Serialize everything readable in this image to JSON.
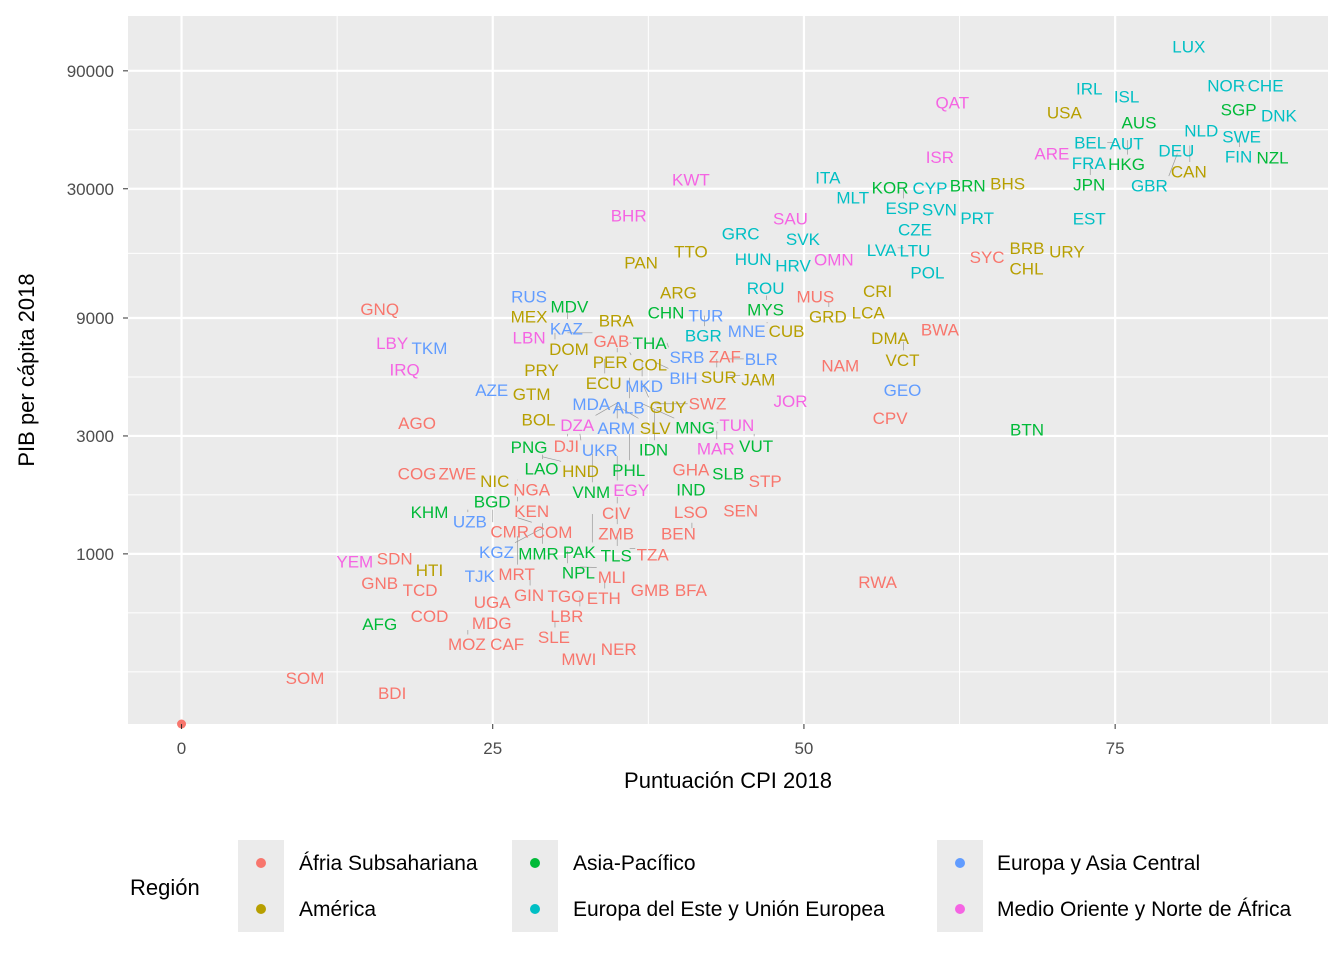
{
  "chart_data": {
    "type": "scatter",
    "title": "",
    "xlabel": "Puntuación CPI 2018",
    "ylabel": "PIB per cápita 2018",
    "x_scale": "linear",
    "y_scale": "log",
    "xlim": [
      -4.3,
      92.1
    ],
    "ylim": [
      205,
      150000
    ],
    "x_ticks": [
      0,
      25,
      50,
      75
    ],
    "x_tick_labels": [
      "0",
      "25",
      "50",
      "75"
    ],
    "y_ticks": [
      1000,
      3000,
      9000,
      30000,
      90000
    ],
    "y_tick_labels": [
      "1000",
      "3000",
      "9000",
      "30000",
      "90000"
    ],
    "grid": true,
    "marks": "text labels",
    "legend": {
      "position": "bottom",
      "title": "Región",
      "entries": [
        {
          "name": "Áfria Subsahariana",
          "color": "#F8766D"
        },
        {
          "name": "América",
          "color": "#B79F00"
        },
        {
          "name": "Asia-Pacífico",
          "color": "#00BA38"
        },
        {
          "name": "Europa del Este y Unión Europea",
          "color": "#00BFC4"
        },
        {
          "name": "Europa y Asia Central",
          "color": "#619CFF"
        },
        {
          "name": "Medio Oriente y Norte de África",
          "color": "#F564E3"
        }
      ]
    },
    "point_fields": [
      "label",
      "cpi",
      "gdp_per_capita",
      "region_index"
    ],
    "points": [
      [
        "LUX",
        81,
        113000,
        3
      ],
      [
        "NOR",
        84,
        78500,
        3
      ],
      [
        "CHE",
        85,
        78500,
        3
      ],
      [
        "IRL",
        73,
        76300,
        3
      ],
      [
        "ISL",
        76,
        70800,
        3
      ],
      [
        "QAT",
        62,
        67000,
        5
      ],
      [
        "USA",
        71,
        61000,
        1
      ],
      [
        "SGP",
        85,
        62800,
        2
      ],
      [
        "DNK",
        88,
        59300,
        3
      ],
      [
        "AUS",
        77,
        55600,
        2
      ],
      [
        "AUT",
        76,
        50100,
        3
      ],
      [
        "NLD",
        82,
        51600,
        3
      ],
      [
        "SWE",
        85,
        52600,
        3
      ],
      [
        "FIN",
        85,
        48800,
        3
      ],
      [
        "HKG",
        76,
        47200,
        2
      ],
      [
        "BEL",
        75,
        46100,
        3
      ],
      [
        "DEU",
        80,
        46100,
        3
      ],
      [
        "CAN",
        81,
        44900,
        1
      ],
      [
        "GBR",
        80,
        41600,
        3
      ],
      [
        "NZL",
        87,
        41600,
        2
      ],
      [
        "ARE",
        70,
        41600,
        5
      ],
      [
        "FRA",
        72,
        40400,
        3
      ],
      [
        "JPN",
        73,
        38300,
        2
      ],
      [
        "ISR",
        61,
        40400,
        5
      ],
      [
        "KWT",
        41,
        32700,
        5
      ],
      [
        "ITA",
        52,
        33300,
        3
      ],
      [
        "KOR",
        57,
        30300,
        2
      ],
      [
        "ESP",
        58,
        29700,
        3
      ],
      [
        "MLT",
        54,
        29200,
        3
      ],
      [
        "CYP",
        59,
        28100,
        3
      ],
      [
        "BRN",
        63,
        30900,
        2
      ],
      [
        "BHS",
        65,
        31500,
        1
      ],
      [
        "SVN",
        60,
        25200,
        3
      ],
      [
        "CZE",
        59,
        22500,
        3
      ],
      [
        "PRT",
        64,
        22900,
        3
      ],
      [
        "EST",
        73,
        22700,
        3
      ],
      [
        "BHR",
        36,
        23400,
        5
      ],
      [
        "SAU",
        49,
        22700,
        5
      ],
      [
        "GRC",
        45,
        19800,
        3
      ],
      [
        "SVK",
        50,
        18800,
        3
      ],
      [
        "LTU",
        59,
        18500,
        3
      ],
      [
        "LVA",
        58,
        17300,
        3
      ],
      [
        "HUN",
        46,
        15600,
        3
      ],
      [
        "HRV",
        48,
        14700,
        3
      ],
      [
        "OMN",
        52,
        16100,
        5
      ],
      [
        "POL",
        60,
        15100,
        3
      ],
      [
        "TTO",
        41,
        16700,
        1
      ],
      [
        "PAN",
        37,
        15100,
        1
      ],
      [
        "BRB",
        68,
        17300,
        1
      ],
      [
        "URY",
        70,
        16700,
        1
      ],
      [
        "SYC",
        66,
        15900,
        0
      ],
      [
        "CHL",
        67,
        15400,
        1
      ],
      [
        "ROU",
        47,
        11900,
        3
      ],
      [
        "MYS",
        47,
        11100,
        2
      ],
      [
        "MUS",
        51,
        11000,
        0
      ],
      [
        "CRI",
        56,
        11600,
        1
      ],
      [
        "GRD",
        52,
        10400,
        1
      ],
      [
        "LCA",
        55,
        10400,
        1
      ],
      [
        "ARG",
        40,
        11400,
        1
      ],
      [
        "GNQ",
        16,
        9800,
        0
      ],
      [
        "RUS",
        28,
        11000,
        4
      ],
      [
        "MDV",
        31,
        10000,
        2
      ],
      [
        "MEX",
        28,
        9460,
        1
      ],
      [
        "KAZ",
        31,
        9460,
        4
      ],
      [
        "CHN",
        39,
        9460,
        2
      ],
      [
        "TUR",
        41,
        9200,
        4
      ],
      [
        "BGR",
        42,
        9200,
        3
      ],
      [
        "MNE",
        45,
        8610,
        4
      ],
      [
        "CUB",
        47,
        8610,
        1
      ],
      [
        "BRA",
        35,
        8780,
        1
      ],
      [
        "LBN",
        28,
        8070,
        5
      ],
      [
        "DOM",
        30,
        7840,
        1
      ],
      [
        "GAB",
        31,
        7840,
        0
      ],
      [
        "LBY",
        17,
        7140,
        5
      ],
      [
        "TKM",
        20,
        6820,
        4
      ],
      [
        "IRQ",
        18,
        5770,
        5
      ],
      [
        "THA",
        36,
        7140,
        2
      ],
      [
        "SRB",
        39,
        7140,
        4
      ],
      [
        "PER",
        35,
        6820,
        1
      ],
      [
        "COL",
        36,
        6520,
        1
      ],
      [
        "ECU",
        34,
        6150,
        1
      ],
      [
        "MKD",
        37,
        5980,
        4
      ],
      [
        "BIH",
        38,
        5980,
        4
      ],
      [
        "ZAF",
        43,
        6280,
        0
      ],
      [
        "SUR",
        43,
        6150,
        1
      ],
      [
        "BLR",
        44,
        6150,
        4
      ],
      [
        "DMA",
        57,
        7480,
        1
      ],
      [
        "VCT",
        58,
        7210,
        1
      ],
      [
        "BWA",
        61,
        8070,
        0
      ],
      [
        "NAM",
        53,
        5770,
        0
      ],
      [
        "JAM",
        44,
        5260,
        1
      ],
      [
        "ALB",
        36,
        5160,
        4
      ],
      [
        "GUY",
        37,
        4920,
        1
      ],
      [
        "PRY",
        29,
        5660,
        1
      ],
      [
        "AZE",
        25,
        4610,
        4
      ],
      [
        "GTM",
        27,
        4440,
        1
      ],
      [
        "GEO",
        58,
        4610,
        4
      ],
      [
        "MDA",
        33,
        4120,
        4
      ],
      [
        "ARM",
        35,
        4120,
        4
      ],
      [
        "DZA",
        35,
        4080,
        5
      ],
      [
        "SLV",
        35,
        3970,
        1
      ],
      [
        "MNG",
        37,
        4050,
        2
      ],
      [
        "SWZ",
        38,
        4050,
        0
      ],
      [
        "IDN",
        38,
        3830,
        2
      ],
      [
        "JOR",
        49,
        4160,
        5
      ],
      [
        "CPV",
        57,
        3550,
        0
      ],
      [
        "BTN",
        68,
        3180,
        2
      ],
      [
        "AGO",
        19,
        3390,
        0
      ],
      [
        "BOL",
        29,
        3490,
        1
      ],
      [
        "TUN",
        43,
        3390,
        5
      ],
      [
        "MAR",
        43,
        3150,
        5
      ],
      [
        "VUT",
        46,
        3060,
        2
      ],
      [
        "DJI",
        31,
        3060,
        0
      ],
      [
        "UKR",
        32,
        3060,
        4
      ],
      [
        "PHL",
        36,
        3060,
        2
      ],
      [
        "PNG",
        28,
        2710,
        2
      ],
      [
        "LAO",
        29,
        2520,
        2
      ],
      [
        "HND",
        29,
        2470,
        1
      ],
      [
        "VNM",
        33,
        2540,
        2
      ],
      [
        "EGY",
        35,
        2490,
        5
      ],
      [
        "GHA",
        41,
        2190,
        0
      ],
      [
        "SLB",
        44,
        2110,
        2
      ],
      [
        "IND",
        41,
        1995,
        2
      ],
      [
        "STP",
        46,
        1970,
        0
      ],
      [
        "COG",
        19,
        2110,
        0
      ],
      [
        "ZWE",
        22,
        2110,
        0
      ],
      [
        "NIC",
        25,
        1970,
        1
      ],
      [
        "NGA",
        27,
        1995,
        0
      ],
      [
        "BGD",
        26,
        1690,
        2
      ],
      [
        "KEN",
        27,
        1700,
        0
      ],
      [
        "CIV",
        35,
        1700,
        0
      ],
      [
        "ZMB",
        35,
        1510,
        0
      ],
      [
        "SEN",
        45,
        1500,
        0
      ],
      [
        "KHM",
        20,
        1480,
        2
      ],
      [
        "UZB",
        23,
        1510,
        4
      ],
      [
        "CMR",
        25,
        1510,
        0
      ],
      [
        "COM",
        27,
        1400,
        0
      ],
      [
        "PAK",
        33,
        1450,
        2
      ],
      [
        "MMR",
        29,
        1330,
        2
      ],
      [
        "KGZ",
        29,
        1270,
        4
      ],
      [
        "TLS",
        35,
        1210,
        2
      ],
      [
        "BEN",
        40,
        1210,
        0
      ],
      [
        "LSO",
        41,
        1270,
        0
      ],
      [
        "MRT",
        27,
        1180,
        0
      ],
      [
        "NPL",
        31,
        1030,
        2
      ],
      [
        "TZA",
        36,
        1050,
        0
      ],
      [
        "YEM",
        14,
        930,
        5
      ],
      [
        "SDN",
        16,
        960,
        0
      ],
      [
        "HTI",
        20,
        862,
        1
      ],
      [
        "GIN",
        28,
        869,
        0
      ],
      [
        "MLI",
        32,
        885,
        0
      ],
      [
        "TJK",
        25,
        815,
        4
      ],
      [
        "GNB",
        16,
        778,
        0
      ],
      [
        "TCD",
        19,
        728,
        0
      ],
      [
        "ETH",
        34,
        770,
        0
      ],
      [
        "GMB",
        37,
        715,
        0
      ],
      [
        "BFA",
        41,
        715,
        0
      ],
      [
        "RWA",
        56,
        770,
        0
      ],
      [
        "TGO",
        30,
        676,
        0
      ],
      [
        "LBR",
        32,
        676,
        0
      ],
      [
        "UGA",
        26,
        640,
        0
      ],
      [
        "AFG",
        16,
        521,
        2
      ],
      [
        "COD",
        20,
        561,
        0
      ],
      [
        "MDG",
        25,
        525,
        0
      ],
      [
        "MOZ",
        23,
        492,
        0
      ],
      [
        "CAF",
        26,
        474,
        0
      ],
      [
        "SLE",
        30,
        535,
        0
      ],
      [
        "MWI",
        32,
        390,
        0
      ],
      [
        "NER",
        34,
        412,
        0
      ],
      [
        "SOM",
        10,
        315,
        0
      ],
      [
        "BDI",
        17,
        274,
        0
      ]
    ],
    "unlabeled_points": [
      {
        "x": 0,
        "y": null,
        "region_index": 0
      }
    ]
  }
}
